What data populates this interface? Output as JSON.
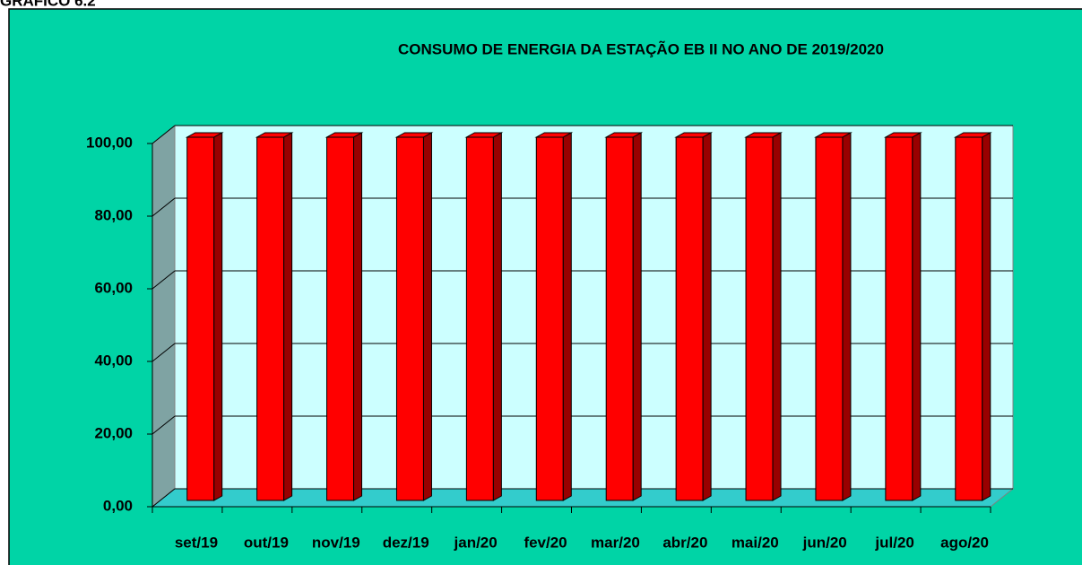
{
  "caption": "GRÁFICO 6.2",
  "chart_data": {
    "type": "bar3d",
    "title": "CONSUMO DE ENERGIA DA ESTAÇÃO EB II NO ANO DE 2019/2020",
    "categories": [
      "set/19",
      "out/19",
      "nov/19",
      "dez/19",
      "jan/20",
      "fev/20",
      "mar/20",
      "abr/20",
      "mai/20",
      "jun/20",
      "jul/20",
      "ago/20"
    ],
    "values": [
      100,
      100,
      100,
      100,
      100,
      100,
      100,
      100,
      100,
      100,
      100,
      100
    ],
    "color": "#ff0000",
    "ylim": [
      0,
      100
    ],
    "yticks": [
      {
        "value": 0,
        "label": "0,00"
      },
      {
        "value": 20,
        "label": "20,00"
      },
      {
        "value": 40,
        "label": "40,00"
      },
      {
        "value": 60,
        "label": "60,00"
      },
      {
        "value": 80,
        "label": "80,00"
      },
      {
        "value": 100,
        "label": "100,00"
      }
    ],
    "grid": true
  }
}
